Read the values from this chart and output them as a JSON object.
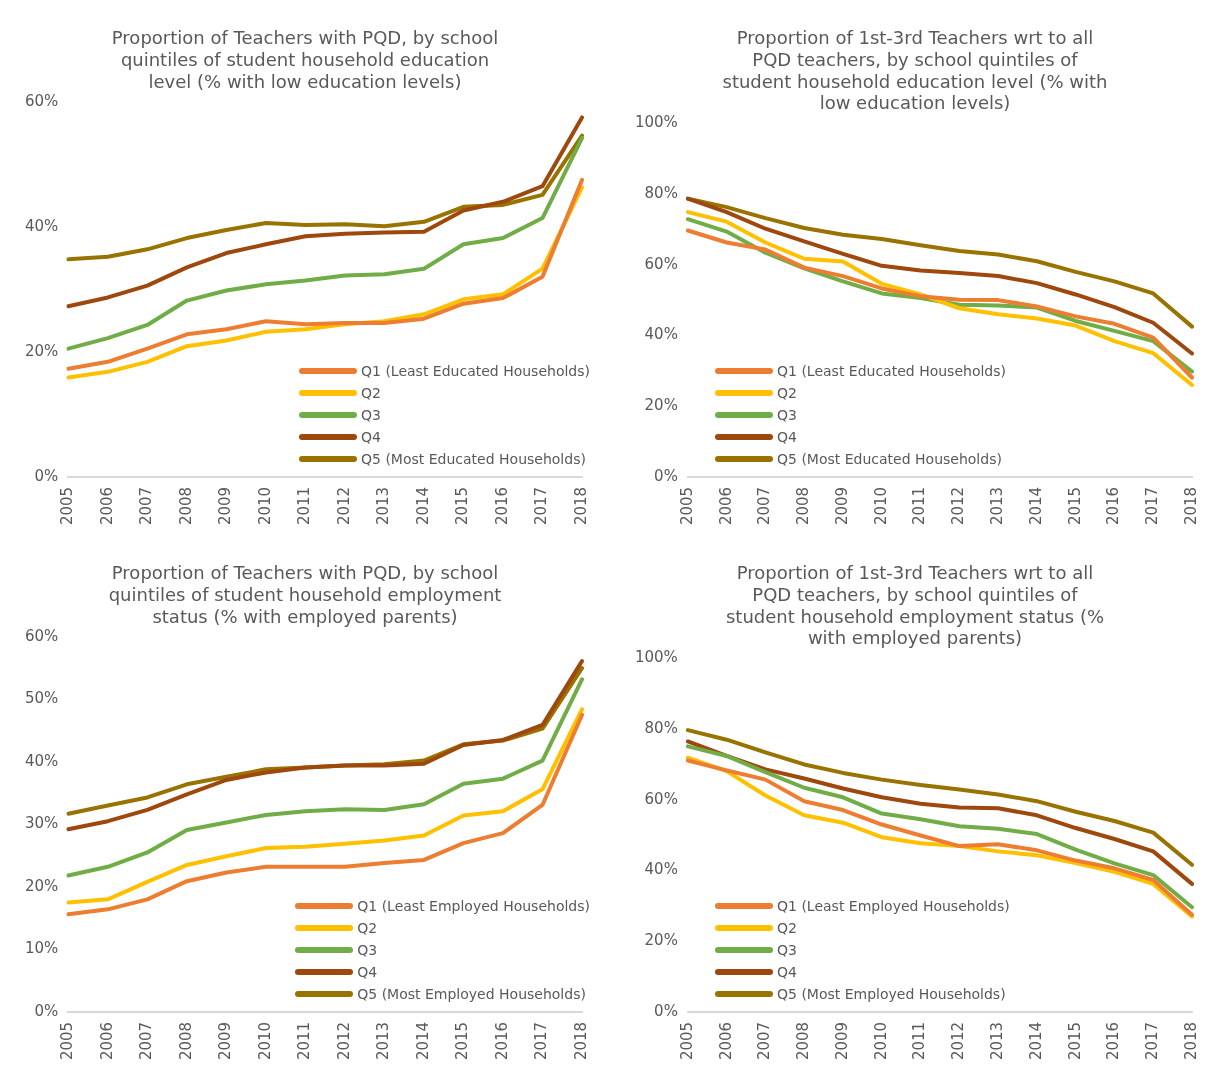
{
  "chart_data": [
    {
      "type": "line",
      "title": "Proportion of Teachers with PQD, by school quintiles of student household education level (% with low education levels)",
      "categories": [
        "2005",
        "2006",
        "2007",
        "2008",
        "2009",
        "2010",
        "2011",
        "2012",
        "2013",
        "2014",
        "2015",
        "2016",
        "2017",
        "2018"
      ],
      "ylim": [
        0,
        60
      ],
      "yticks": [
        {
          "value": 0,
          "label": "0%"
        },
        {
          "value": 20,
          "label": "20%"
        },
        {
          "value": 40,
          "label": "40%"
        },
        {
          "value": 60,
          "label": "60%"
        }
      ],
      "grid": false,
      "legend": "bottom right",
      "marker": "none",
      "line_style": "solid",
      "series": [
        {
          "name": "Q1 (Least Educated Households)",
          "color": "#ed7d31",
          "values": [
            17.3,
            18.4,
            20.5,
            22.8,
            23.6,
            24.9,
            24.4,
            24.6,
            24.6,
            25.3,
            27.7,
            28.6,
            32.0,
            47.5
          ]
        },
        {
          "name": "Q2",
          "color": "#ffc000",
          "values": [
            15.9,
            16.8,
            18.4,
            20.9,
            21.8,
            23.2,
            23.6,
            24.4,
            24.9,
            26.0,
            28.4,
            29.2,
            33.3,
            46.3
          ]
        },
        {
          "name": "Q3",
          "color": "#70ad47",
          "values": [
            20.5,
            22.2,
            24.3,
            28.2,
            29.8,
            30.8,
            31.4,
            32.2,
            32.4,
            33.3,
            37.2,
            38.2,
            41.4,
            54.2
          ]
        },
        {
          "name": "Q4",
          "color": "#9e480e",
          "values": [
            27.3,
            28.7,
            30.6,
            33.5,
            35.8,
            37.2,
            38.5,
            38.9,
            39.1,
            39.2,
            42.6,
            44.0,
            46.5,
            57.5
          ]
        },
        {
          "name": "Q5 (Most Educated Households)",
          "color": "#997300",
          "values": [
            34.8,
            35.2,
            36.4,
            38.2,
            39.5,
            40.6,
            40.3,
            40.4,
            40.1,
            40.8,
            43.2,
            43.5,
            45.1,
            54.6
          ]
        }
      ]
    },
    {
      "type": "line",
      "title": "Proportion of 1st-3rd Teachers wrt to all PQD teachers, by school quintiles of student household education level (% with low education levels)",
      "categories": [
        "2005",
        "2006",
        "2007",
        "2008",
        "2009",
        "2010",
        "2011",
        "2012",
        "2013",
        "2014",
        "2015",
        "2016",
        "2017",
        "2018"
      ],
      "ylim": [
        0,
        100
      ],
      "yticks": [
        {
          "value": 0,
          "label": "0%"
        },
        {
          "value": 20,
          "label": "20%"
        },
        {
          "value": 40,
          "label": "40%"
        },
        {
          "value": 60,
          "label": "60%"
        },
        {
          "value": 80,
          "label": "80%"
        },
        {
          "value": 100,
          "label": "100%"
        }
      ],
      "grid": false,
      "legend": "bottom left",
      "marker": "none",
      "line_style": "solid",
      "series": [
        {
          "name": "Q1 (Least Educated Households)",
          "color": "#ed7d31",
          "values": [
            69.7,
            66.3,
            64.3,
            59.2,
            56.8,
            53.3,
            51.1,
            50.1,
            50.0,
            48.2,
            45.4,
            43.3,
            39.4,
            28.1
          ]
        },
        {
          "name": "Q2",
          "color": "#ffc000",
          "values": [
            74.9,
            72.2,
            66.3,
            61.7,
            60.9,
            54.6,
            51.6,
            47.7,
            46.0,
            44.8,
            42.8,
            38.4,
            35.0,
            26.0
          ]
        },
        {
          "name": "Q3",
          "color": "#70ad47",
          "values": [
            72.9,
            69.4,
            63.4,
            59.0,
            55.3,
            51.9,
            50.6,
            48.7,
            48.5,
            47.9,
            44.1,
            41.3,
            38.4,
            29.8
          ]
        },
        {
          "name": "Q4",
          "color": "#9e480e",
          "values": [
            78.7,
            74.9,
            70.2,
            66.6,
            63.1,
            59.7,
            58.4,
            57.7,
            56.8,
            54.8,
            51.6,
            48.0,
            43.6,
            34.9
          ]
        },
        {
          "name": "Q5 (Most Educated Households)",
          "color": "#997300",
          "values": [
            78.7,
            76.3,
            73.2,
            70.4,
            68.5,
            67.3,
            65.5,
            63.9,
            62.9,
            61.0,
            58.0,
            55.3,
            51.9,
            42.5
          ]
        }
      ]
    },
    {
      "type": "line",
      "title": "Proportion of Teachers with PQD, by school quintiles of student household employment status (% with employed parents)",
      "categories": [
        "2005",
        "2006",
        "2007",
        "2008",
        "2009",
        "2010",
        "2011",
        "2012",
        "2013",
        "2014",
        "2015",
        "2016",
        "2017",
        "2018"
      ],
      "ylim": [
        0,
        60
      ],
      "yticks": [
        {
          "value": 0,
          "label": "0%"
        },
        {
          "value": 10,
          "label": "10%"
        },
        {
          "value": 20,
          "label": "20%"
        },
        {
          "value": 30,
          "label": "30%"
        },
        {
          "value": 40,
          "label": "40%"
        },
        {
          "value": 50,
          "label": "50%"
        },
        {
          "value": 60,
          "label": "60%"
        }
      ],
      "grid": false,
      "legend": "bottom right",
      "marker": "none",
      "line_style": "solid",
      "series": [
        {
          "name": "Q1 (Least Employed Households)",
          "color": "#ed7d31",
          "values": [
            15.6,
            16.4,
            18.0,
            20.9,
            22.3,
            23.2,
            23.2,
            23.2,
            23.8,
            24.3,
            27.0,
            28.6,
            33.1,
            47.5
          ]
        },
        {
          "name": "Q2",
          "color": "#ffc000",
          "values": [
            17.5,
            18.0,
            20.8,
            23.5,
            24.9,
            26.2,
            26.4,
            26.9,
            27.4,
            28.2,
            31.4,
            32.1,
            35.6,
            48.4
          ]
        },
        {
          "name": "Q3",
          "color": "#70ad47",
          "values": [
            21.8,
            23.2,
            25.5,
            29.1,
            30.3,
            31.5,
            32.1,
            32.4,
            32.3,
            33.2,
            36.5,
            37.3,
            40.2,
            53.2
          ]
        },
        {
          "name": "Q4",
          "color": "#9e480e",
          "values": [
            29.2,
            30.5,
            32.3,
            34.8,
            37.1,
            38.3,
            39.1,
            39.4,
            39.4,
            39.7,
            42.7,
            43.5,
            45.9,
            56.1
          ]
        },
        {
          "name": "Q5 (Most Employed Households)",
          "color": "#997300",
          "values": [
            31.7,
            33.0,
            34.3,
            36.4,
            37.6,
            38.8,
            39.1,
            39.4,
            39.6,
            40.2,
            42.8,
            43.4,
            45.3,
            55.0
          ]
        }
      ]
    },
    {
      "type": "line",
      "title": "Proportion of 1st-3rd Teachers wrt to all PQD teachers, by school quintiles of student household employment status (% with employed parents)",
      "categories": [
        "2005",
        "2006",
        "2007",
        "2008",
        "2009",
        "2010",
        "2011",
        "2012",
        "2013",
        "2014",
        "2015",
        "2016",
        "2017",
        "2018"
      ],
      "ylim": [
        0,
        100
      ],
      "yticks": [
        {
          "value": 0,
          "label": "0%"
        },
        {
          "value": 20,
          "label": "20%"
        },
        {
          "value": 40,
          "label": "40%"
        },
        {
          "value": 60,
          "label": "60%"
        },
        {
          "value": 80,
          "label": "80%"
        },
        {
          "value": 100,
          "label": "100%"
        }
      ],
      "grid": false,
      "legend": "bottom left",
      "marker": "none",
      "line_style": "solid",
      "series": [
        {
          "name": "Q1 (Least Employed Households)",
          "color": "#ed7d31",
          "values": [
            71.1,
            68.3,
            65.7,
            59.6,
            57.1,
            53.0,
            49.9,
            46.9,
            47.4,
            45.7,
            42.8,
            40.6,
            37.3,
            27.5
          ]
        },
        {
          "name": "Q2",
          "color": "#ffc000",
          "values": [
            71.9,
            68.1,
            61.2,
            55.6,
            53.5,
            49.4,
            47.7,
            46.9,
            45.4,
            44.3,
            42.1,
            39.6,
            36.2,
            27.0
          ]
        },
        {
          "name": "Q3",
          "color": "#70ad47",
          "values": [
            75.1,
            72.4,
            67.8,
            63.4,
            60.7,
            56.1,
            54.5,
            52.5,
            51.8,
            50.3,
            45.9,
            42.0,
            38.7,
            29.6
          ]
        },
        {
          "name": "Q4",
          "color": "#9e480e",
          "values": [
            76.5,
            72.4,
            68.6,
            66.0,
            63.2,
            60.7,
            58.9,
            57.8,
            57.6,
            55.6,
            52.0,
            48.9,
            45.4,
            36.2
          ]
        },
        {
          "name": "Q5 (Most Employed Households)",
          "color": "#997300",
          "values": [
            79.7,
            77.0,
            73.4,
            70.0,
            67.6,
            65.7,
            64.2,
            62.9,
            61.5,
            59.6,
            56.6,
            54.0,
            50.7,
            41.6
          ]
        }
      ]
    }
  ]
}
